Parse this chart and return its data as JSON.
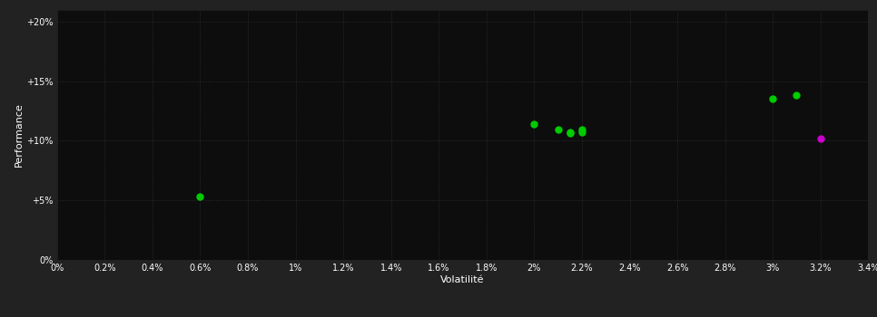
{
  "background_color": "#222222",
  "plot_bg_color": "#0d0d0d",
  "grid_color": "#3a3a3a",
  "grid_linestyle": ":",
  "xlabel": "Volatilité",
  "ylabel": "Performance",
  "label_color": "#ffffff",
  "tick_color": "#ffffff",
  "xlim": [
    0.0,
    0.034
  ],
  "ylim": [
    0.0,
    0.21
  ],
  "xtick_vals": [
    0.0,
    0.002,
    0.004,
    0.006,
    0.008,
    0.01,
    0.012,
    0.014,
    0.016,
    0.018,
    0.02,
    0.022,
    0.024,
    0.026,
    0.028,
    0.03,
    0.032,
    0.034
  ],
  "ytick_vals": [
    0.0,
    0.05,
    0.1,
    0.15,
    0.2
  ],
  "green_points": [
    [
      0.006,
      0.053
    ],
    [
      0.02,
      0.114
    ],
    [
      0.021,
      0.109
    ],
    [
      0.0215,
      0.107
    ],
    [
      0.022,
      0.107
    ],
    [
      0.0215,
      0.106
    ],
    [
      0.022,
      0.109
    ],
    [
      0.03,
      0.135
    ],
    [
      0.031,
      0.138
    ]
  ],
  "magenta_points": [
    [
      0.032,
      0.102
    ]
  ],
  "green_color": "#00cc00",
  "magenta_color": "#cc00cc",
  "marker_size": 5,
  "figsize": [
    9.66,
    3.5
  ],
  "dpi": 100
}
